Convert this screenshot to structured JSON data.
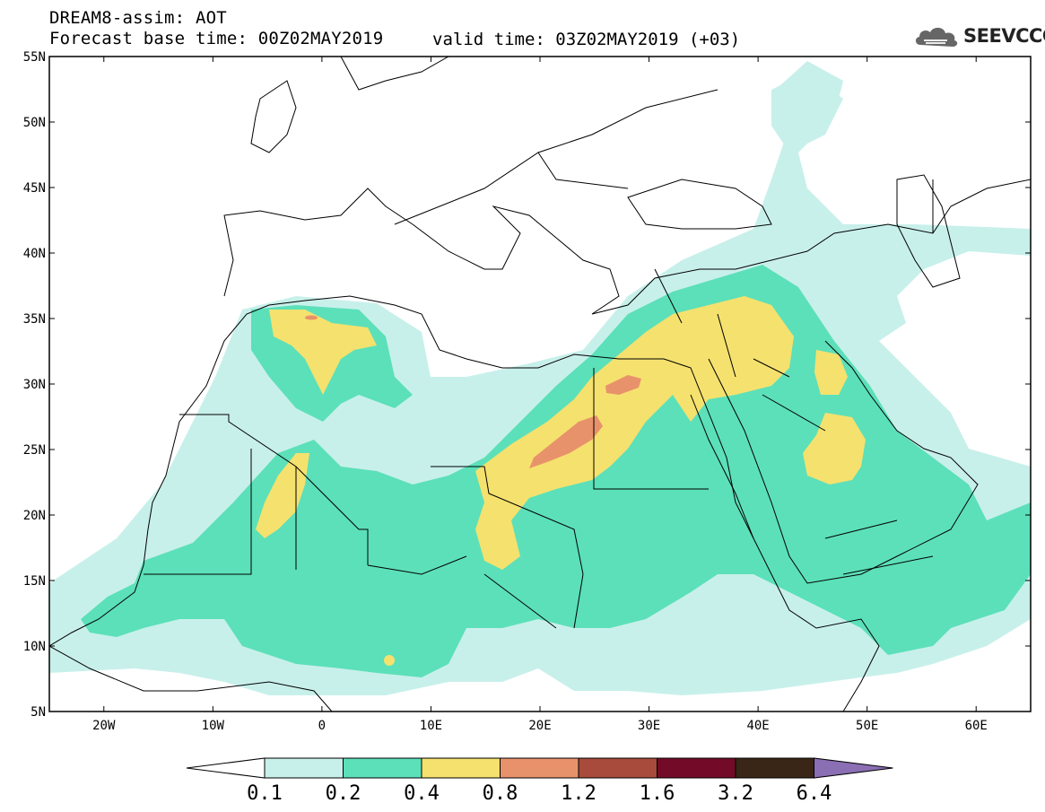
{
  "header": {
    "title": "DREAM8-assim: AOT",
    "base_time": "Forecast base time: 00Z02MAY2019",
    "valid_time": "valid time: 03Z02MAY2019 (+03)"
  },
  "logo": {
    "text": "SEEVCCC",
    "icon": "cloud-logo-icon"
  },
  "map": {
    "lat_labels": [
      "55N",
      "50N",
      "45N",
      "40N",
      "35N",
      "30N",
      "25N",
      "20N",
      "15N",
      "10N",
      "5N"
    ],
    "lon_labels": [
      "20W",
      "10W",
      "0",
      "10E",
      "20E",
      "30E",
      "40E",
      "50E",
      "60E"
    ],
    "lat_range": [
      5,
      55
    ],
    "lon_range": [
      -25,
      65
    ]
  },
  "colorbar": {
    "labels": [
      "0.1",
      "0.2",
      "0.4",
      "0.8",
      "1.2",
      "1.6",
      "3.2",
      "6.4"
    ],
    "colors": [
      "#ffffff",
      "#c8f0eb",
      "#5ce0b9",
      "#f5e16e",
      "#e8926b",
      "#a84b3c",
      "#730a28",
      "#3a2616",
      "#8a6fb4"
    ]
  },
  "shading_colors": {
    "c1": "#c8f0eb",
    "c2": "#5ce0b9",
    "c3": "#f5e16e",
    "c4": "#e8926b"
  }
}
